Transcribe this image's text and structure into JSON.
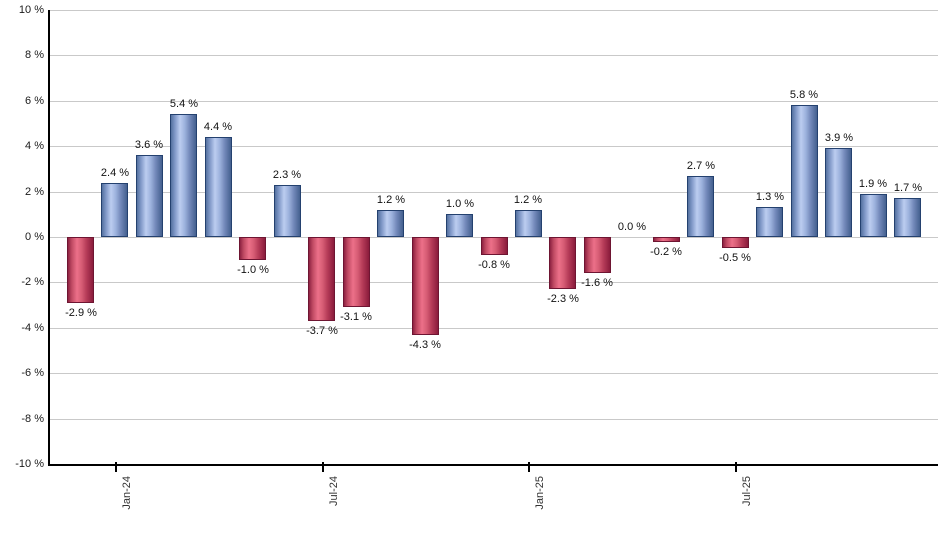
{
  "chart_data": {
    "type": "bar",
    "title": "",
    "values": [
      -2.9,
      2.4,
      3.6,
      5.4,
      4.4,
      -1.0,
      2.3,
      -3.7,
      -3.1,
      1.2,
      -4.3,
      1.0,
      -0.8,
      1.2,
      -2.3,
      -1.6,
      0.0,
      -0.2,
      2.7,
      -0.5,
      1.3,
      5.8,
      3.9,
      1.9,
      1.7
    ],
    "data_labels": [
      "-2.9 %",
      "2.4 %",
      "3.6 %",
      "5.4 %",
      "4.4 %",
      "-1.0 %",
      "2.3 %",
      "-3.7 %",
      "-3.1 %",
      "1.2 %",
      "-4.3 %",
      "1.0 %",
      "-0.8 %",
      "1.2 %",
      "-2.3 %",
      "-1.6 %",
      "0.0 %",
      "-0.2 %",
      "2.7 %",
      "-0.5 %",
      "1.3 %",
      "5.8 %",
      "3.9 %",
      "1.9 %",
      "1.7 %"
    ],
    "y_tick_labels": [
      "10 %",
      "8 %",
      "6 %",
      "4 %",
      "2 %",
      "0 %",
      "-2 %",
      "-4 %",
      "-6 %",
      "-8 %",
      "-10 %"
    ],
    "x_tick_labels": [
      {
        "label": "Jan-24",
        "bar_index": 1
      },
      {
        "label": "Jul-24",
        "bar_index": 7
      },
      {
        "label": "Jan-25",
        "bar_index": 13
      },
      {
        "label": "Jul-25",
        "bar_index": 19
      }
    ],
    "ylim": [
      -10,
      10
    ],
    "y_step": 2,
    "grid": true,
    "legend": "none",
    "colors": {
      "positive_bar_light": "#bccdf0",
      "positive_bar_dark": "#44608f",
      "negative_bar_light": "#ec7089",
      "negative_bar_dark": "#8a1c3c",
      "gridline": "#c9c9c9",
      "axis": "#000000",
      "label_text": "#111111"
    }
  }
}
